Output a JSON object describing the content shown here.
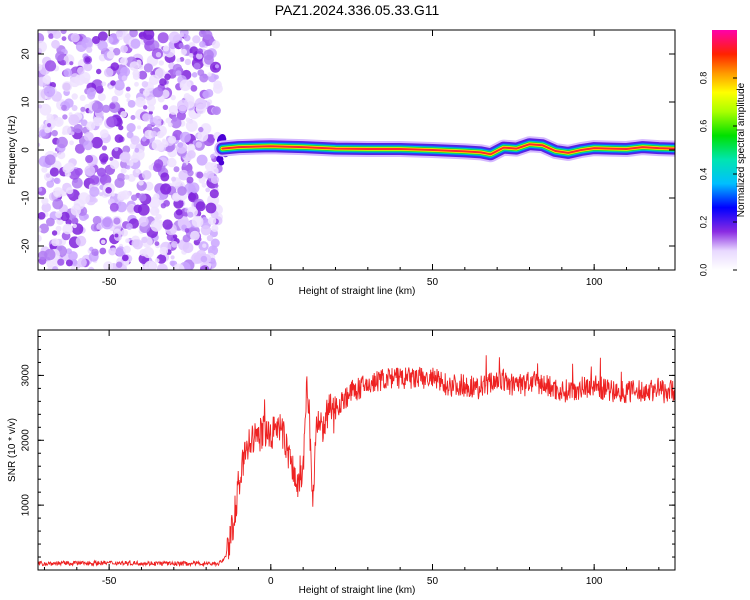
{
  "title": "PAZ1.2024.336.05.33.G11",
  "chart_data": [
    {
      "type": "heatmap",
      "xlabel": "Height of straight line (km)",
      "ylabel": "Frequency (Hz)",
      "xlim": [
        -72,
        125
      ],
      "ylim": [
        -25,
        25
      ],
      "x_ticks": [
        -50,
        0,
        50,
        100
      ],
      "y_ticks": [
        -20,
        -10,
        0,
        10,
        20
      ],
      "colorbar": {
        "label": "Normalized spectral amplitude",
        "range": [
          0,
          1
        ],
        "ticks": [
          "0.0",
          "0.2",
          "0.4",
          "0.6",
          "0.8"
        ]
      },
      "noise_region_x": [
        -72,
        -15
      ],
      "ridge": {
        "x": [
          -15,
          -10,
          0,
          10,
          20,
          30,
          40,
          50,
          60,
          65,
          68,
          72,
          76,
          80,
          84,
          88,
          92,
          96,
          100,
          105,
          110,
          115,
          120,
          125
        ],
        "freq": [
          0.3,
          0.6,
          0.8,
          0.6,
          0.3,
          0.2,
          0.2,
          0.0,
          -0.3,
          -0.5,
          -0.9,
          0.5,
          0.3,
          1.2,
          1.0,
          -0.2,
          -0.6,
          0.0,
          0.4,
          0.3,
          0.2,
          0.6,
          0.4,
          0.3
        ]
      }
    },
    {
      "type": "line",
      "xlabel": "Height of straight line (km)",
      "ylabel": "SNR (10 * v/v)",
      "xlim": [
        -72,
        125
      ],
      "ylim": [
        0,
        3700
      ],
      "x_ticks": [
        -50,
        0,
        50,
        100
      ],
      "y_ticks": [
        1000,
        2000,
        3000
      ],
      "series": [
        {
          "color": "#ee2222",
          "x": [
            -72,
            -50,
            -30,
            -16,
            -14,
            -12,
            -10,
            -8,
            -6,
            -4,
            -2,
            0,
            2,
            4,
            6,
            8,
            10,
            11,
            12,
            13,
            14,
            16,
            18,
            20,
            25,
            30,
            35,
            40,
            45,
            50,
            55,
            60,
            65,
            70,
            75,
            80,
            85,
            90,
            95,
            100,
            105,
            110,
            115,
            120,
            125
          ],
          "y": [
            100,
            110,
            100,
            100,
            200,
            600,
            1300,
            1800,
            2000,
            2050,
            2150,
            2050,
            2250,
            2050,
            1700,
            1300,
            1500,
            2800,
            2400,
            900,
            2200,
            2200,
            2450,
            2500,
            2750,
            2850,
            2950,
            2950,
            2950,
            2950,
            2850,
            2850,
            2800,
            2950,
            2850,
            2900,
            2850,
            2750,
            2800,
            2850,
            2750,
            2750,
            2750,
            2800,
            2750
          ]
        }
      ]
    }
  ]
}
